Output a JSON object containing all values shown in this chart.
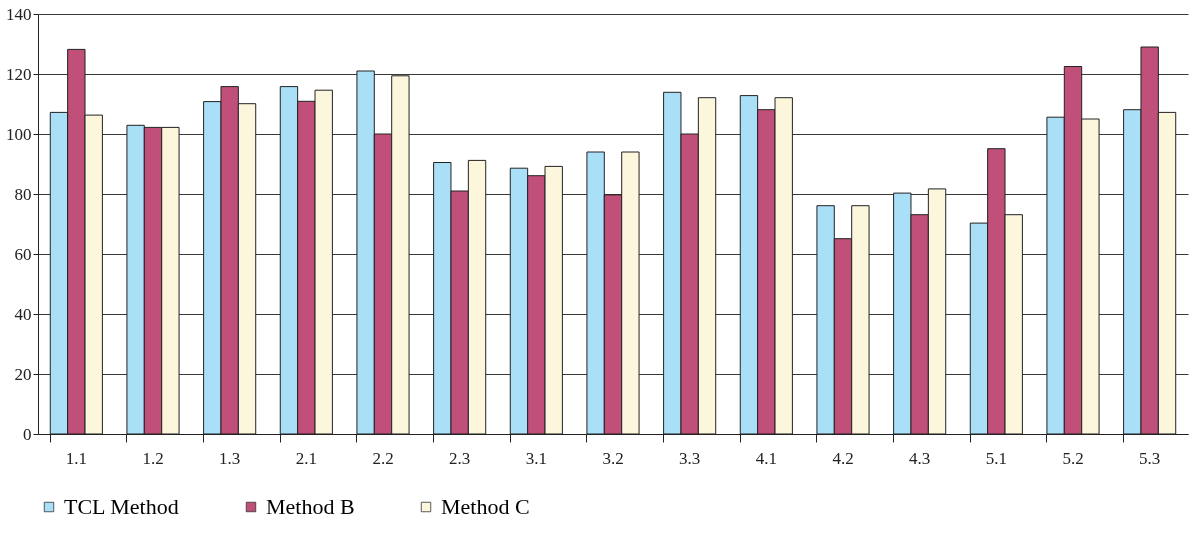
{
  "chart_data": {
    "type": "bar",
    "categories": [
      "1.1",
      "1.2",
      "1.3",
      "2.1",
      "2.2",
      "2.3",
      "3.1",
      "3.2",
      "3.3",
      "4.1",
      "4.2",
      "4.3",
      "5.1",
      "5.2",
      "5.3"
    ],
    "series": [
      {
        "name": "TCL Method",
        "color": "#aadff8",
        "values": [
          107.2,
          102.9,
          110.8,
          115.8,
          121.0,
          90.5,
          88.6,
          94.0,
          113.9,
          112.8,
          76.1,
          80.3,
          70.3,
          105.6,
          108.1
        ]
      },
      {
        "name": "Method B",
        "color": "#c0507a",
        "values": [
          128.2,
          102.2,
          115.8,
          110.9,
          100.0,
          81.0,
          86.1,
          79.7,
          100.0,
          108.1,
          65.1,
          73.1,
          95.1,
          122.5,
          129.0
        ]
      },
      {
        "name": "Method C",
        "color": "#fcf6dc",
        "values": [
          106.3,
          102.2,
          110.1,
          114.6,
          119.4,
          91.2,
          89.2,
          94.0,
          112.1,
          112.1,
          76.1,
          81.7,
          73.1,
          105.0,
          107.2
        ]
      }
    ],
    "ylim": [
      0,
      140
    ],
    "yticks": [
      0,
      20,
      40,
      60,
      80,
      100,
      120,
      140
    ],
    "grid": "y",
    "legend": "bottom"
  }
}
